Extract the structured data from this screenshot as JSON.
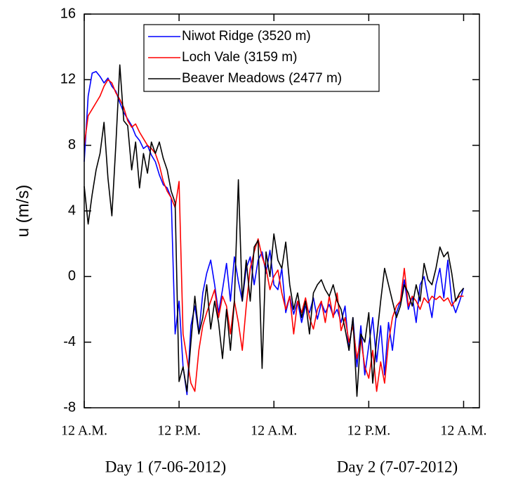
{
  "chart_data": {
    "type": "line",
    "ylabel": "u (m/s)",
    "xlabels": [
      "Day 1 (7-06-2012)",
      "Day 2 (7-07-2012)"
    ],
    "xlim": [
      0,
      50
    ],
    "xticks": [
      {
        "value": 0,
        "label": "12 A.M."
      },
      {
        "value": 12,
        "label": "12 P.M."
      },
      {
        "value": 24,
        "label": "12 A.M."
      },
      {
        "value": 36,
        "label": "12 P.M."
      },
      {
        "value": 48,
        "label": "12 A.M."
      }
    ],
    "ylim": [
      -8,
      16
    ],
    "yticks": [
      -8,
      -4,
      0,
      4,
      8,
      12,
      16
    ],
    "legend": "upper center",
    "x": [
      0,
      0.5,
      1,
      1.5,
      2,
      2.5,
      3,
      3.5,
      4,
      4.5,
      5,
      5.5,
      6,
      6.5,
      7,
      7.5,
      8,
      8.5,
      9,
      9.5,
      10,
      10.5,
      11,
      11.5,
      12,
      12.5,
      13,
      13.5,
      14,
      14.5,
      15,
      15.5,
      16,
      16.5,
      17,
      17.5,
      18,
      18.5,
      19,
      19.5,
      20,
      20.5,
      21,
      21.5,
      22,
      22.5,
      23,
      23.5,
      24,
      24.5,
      25,
      25.5,
      26,
      26.5,
      27,
      27.5,
      28,
      28.5,
      29,
      29.5,
      30,
      30.5,
      31,
      31.5,
      32,
      32.5,
      33,
      33.5,
      34,
      34.5,
      35,
      35.5,
      36,
      36.5,
      37,
      37.5,
      38,
      38.5,
      39,
      39.5,
      40,
      40.5,
      41,
      41.5,
      42,
      42.5,
      43,
      43.5,
      44,
      44.5,
      45,
      45.5,
      46,
      46.5,
      47,
      47.5,
      48
    ],
    "series": [
      {
        "name": "Niwot Ridge (3520 m)",
        "color": "#0000ff",
        "values": [
          7,
          11,
          12.4,
          12.5,
          12.2,
          11.8,
          12.1,
          11.6,
          11.3,
          10.6,
          10,
          9.6,
          9.2,
          8.6,
          8.3,
          7.8,
          8,
          7.4,
          7,
          6.2,
          5.6,
          5.4,
          4.8,
          -3.5,
          -1.5,
          -5.5,
          -7.2,
          -3,
          -1.8,
          -3.5,
          -1,
          0.2,
          1,
          -0.5,
          -2.2,
          -0.8,
          0.8,
          -1.5,
          1.2,
          -0.3,
          -1.5,
          0.5,
          1.2,
          -0.5,
          1,
          1.5,
          0.2,
          1.6,
          -0.5,
          -0.8,
          0.5,
          -2.2,
          -1.2,
          -2.3,
          -1.5,
          -2.8,
          -1.8,
          -2.2,
          -1.3,
          -2.6,
          -1.6,
          -2.2,
          -1.7,
          -2.4,
          -2,
          -2.8,
          -1.8,
          -4.5,
          -2.5,
          -5.5,
          -3,
          -6,
          -4.2,
          -2.5,
          -5.2,
          -3,
          -6,
          -2.8,
          -4.5,
          -2.2,
          -1.5,
          -0.2,
          -2,
          -1.2,
          -2.8,
          -0.5,
          0,
          -1.3,
          -2.5,
          -0.5,
          0.5,
          -1.3,
          1,
          -1.5,
          -2.2,
          -1.5,
          -0.7
        ]
      },
      {
        "name": "Loch Vale (3159 m)",
        "color": "#ff0000",
        "values": [
          8,
          9.8,
          10.2,
          10.6,
          11,
          11.6,
          12,
          11.8,
          11.2,
          10.8,
          10.3,
          9.5,
          9.1,
          9.3,
          8.8,
          8.4,
          8,
          7.8,
          7.5,
          6.8,
          5.8,
          5.2,
          4.8,
          4.2,
          5.8,
          -3.5,
          -5,
          -6.5,
          -7,
          -4.5,
          -3,
          -2.2,
          -1.5,
          -0.8,
          -2.5,
          -1.2,
          -1.8,
          -3.5,
          -1.5,
          -2.8,
          -4.5,
          -1.8,
          0.5,
          1.5,
          2.3,
          1.2,
          0.5,
          -0.8,
          0,
          0.4,
          -1,
          -2,
          -1.2,
          -3.5,
          -1.5,
          -2.2,
          -1.3,
          -2.5,
          -3.2,
          -2,
          -1.5,
          -2.8,
          -1.2,
          -2.5,
          -1,
          -3.3,
          -2.5,
          -4,
          -3,
          -5,
          -3.8,
          -5.5,
          -6.2,
          -4.5,
          -7,
          -5.2,
          -6.5,
          -4,
          -2.5,
          -1.8,
          -1.5,
          0.5,
          -1.8,
          -1.2,
          -1.5,
          -2,
          -1.3,
          -1.6,
          -1.2,
          -1.4,
          -1.2,
          -1.5,
          -1.3,
          -1.8,
          -1.4,
          -1.2,
          -1.2
        ]
      },
      {
        "name": "Beaver Meadows (2477 m)",
        "color": "#000000",
        "values": [
          5.5,
          3.2,
          5,
          6.5,
          7.5,
          9.4,
          6,
          3.7,
          8,
          12.9,
          9.5,
          9.2,
          6.5,
          8.2,
          5.4,
          7.5,
          6.3,
          8.2,
          7.5,
          8.2,
          7.2,
          6.5,
          5.2,
          4.5,
          -6.4,
          -5.5,
          -7,
          -4,
          -1.2,
          -3.5,
          -2.5,
          -0.5,
          -3.2,
          -1.5,
          -2.8,
          -5,
          -2,
          -4.5,
          -1.5,
          5.9,
          -1.5,
          1,
          -1.5,
          1.8,
          2.2,
          -5.6,
          1.5,
          0,
          2.6,
          1,
          0.5,
          2.1,
          -0.5,
          -2,
          -1,
          -2.5,
          -1.5,
          -3.5,
          -1,
          -0.5,
          -0.2,
          -0.8,
          -1.2,
          -0.5,
          -1.5,
          -2,
          -3.2,
          -4.5,
          -2.5,
          -7.3,
          -3.5,
          -4,
          -2.2,
          -6.5,
          -3.8,
          -1.5,
          0.5,
          -0.5,
          -1.5,
          -2.5,
          -1.8,
          -0.5,
          -1,
          -1.8,
          -0.5,
          -1.5,
          0.8,
          -0.2,
          -0.5,
          0.5,
          1.8,
          1.2,
          1.5,
          0.2,
          -1.5,
          -1,
          -0.7
        ]
      }
    ]
  }
}
